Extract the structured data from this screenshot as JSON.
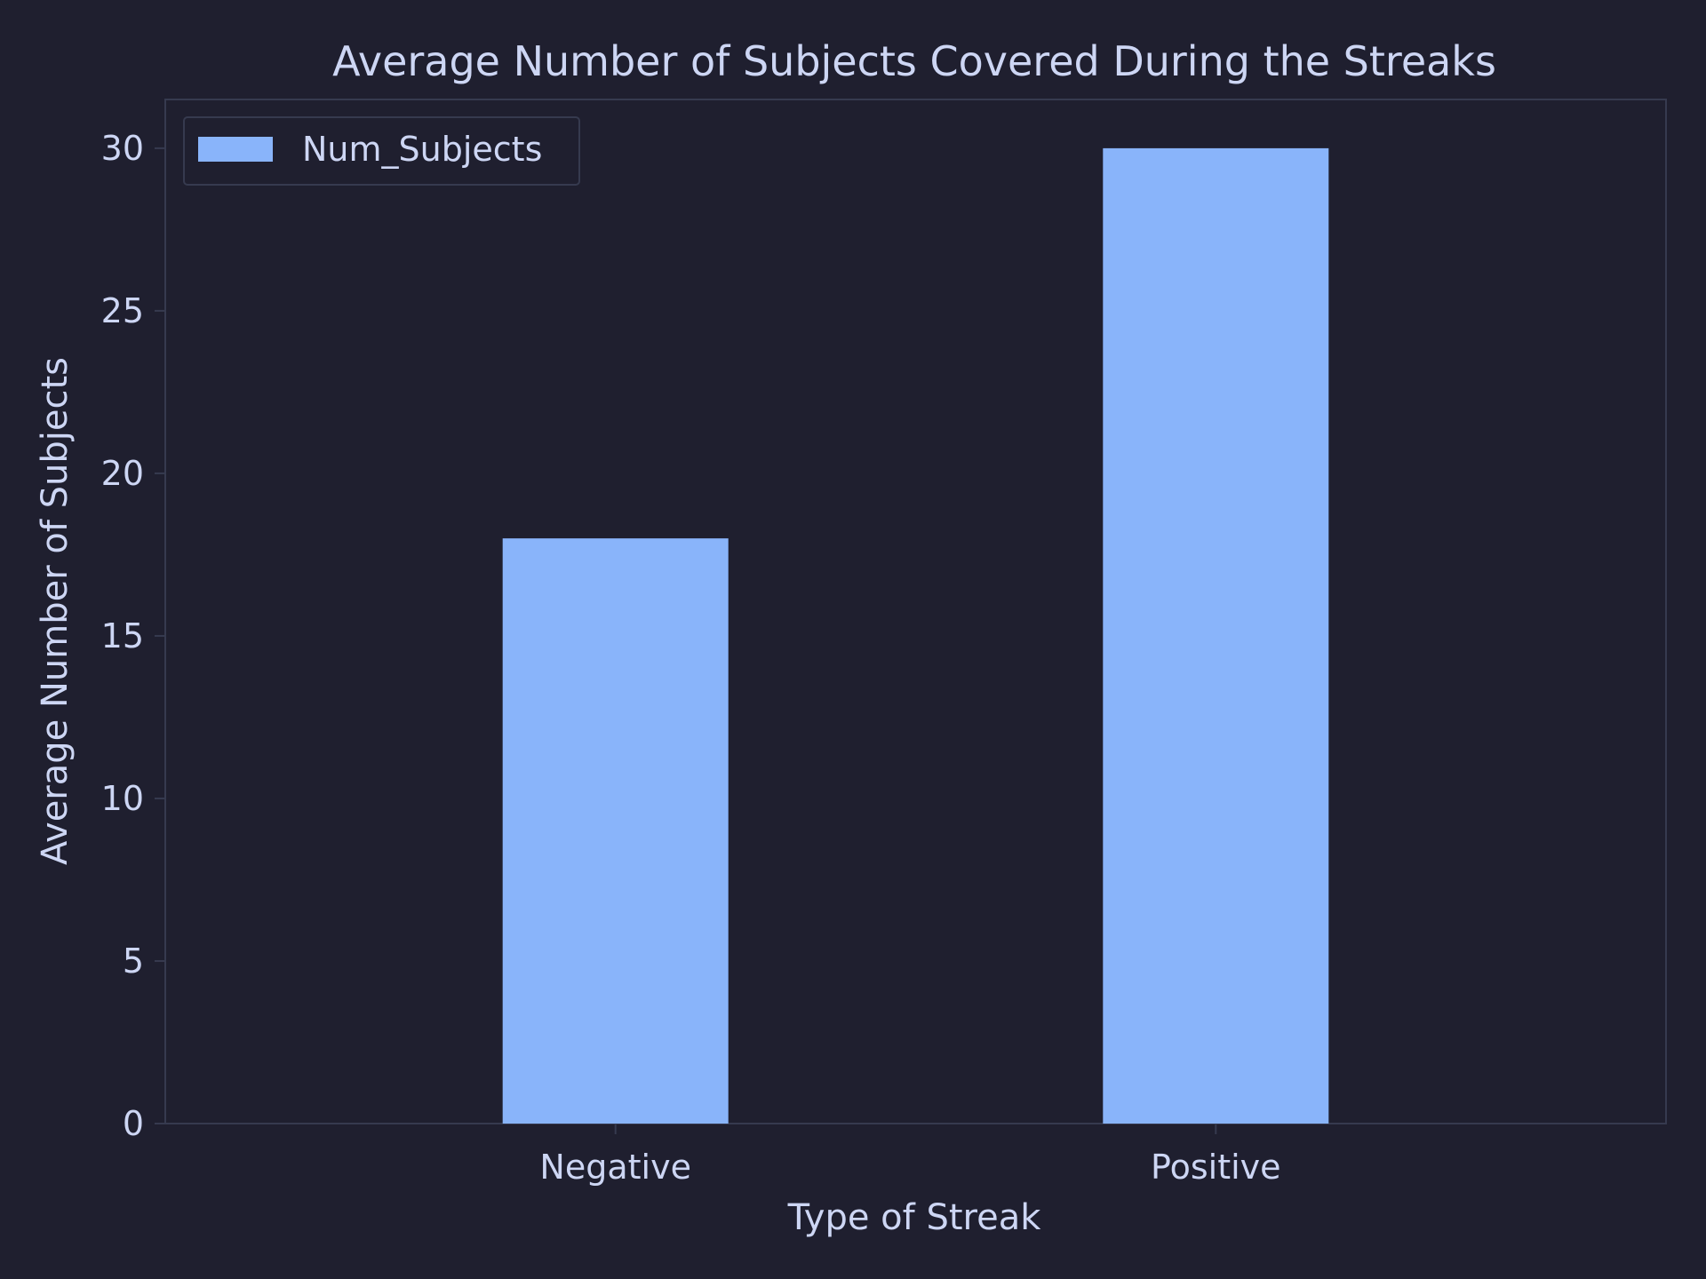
{
  "chart_data": {
    "type": "bar",
    "title": "Average Number of Subjects Covered During the Streaks",
    "xlabel": "Type of Streak",
    "ylabel": "Average Number of Subjects",
    "categories": [
      "Negative",
      "Positive"
    ],
    "series": [
      {
        "name": "Num_Subjects",
        "values": [
          18,
          30
        ]
      }
    ],
    "ylim": [
      0,
      31.5
    ],
    "yticks": [
      0,
      5,
      10,
      15,
      20,
      25,
      30
    ],
    "grid": false,
    "legend_position": "top-left",
    "colors": {
      "background": "#1f1f2f",
      "bar": "#89b4fa",
      "text": "#cdd6f4",
      "axis": "#363a4f"
    }
  }
}
